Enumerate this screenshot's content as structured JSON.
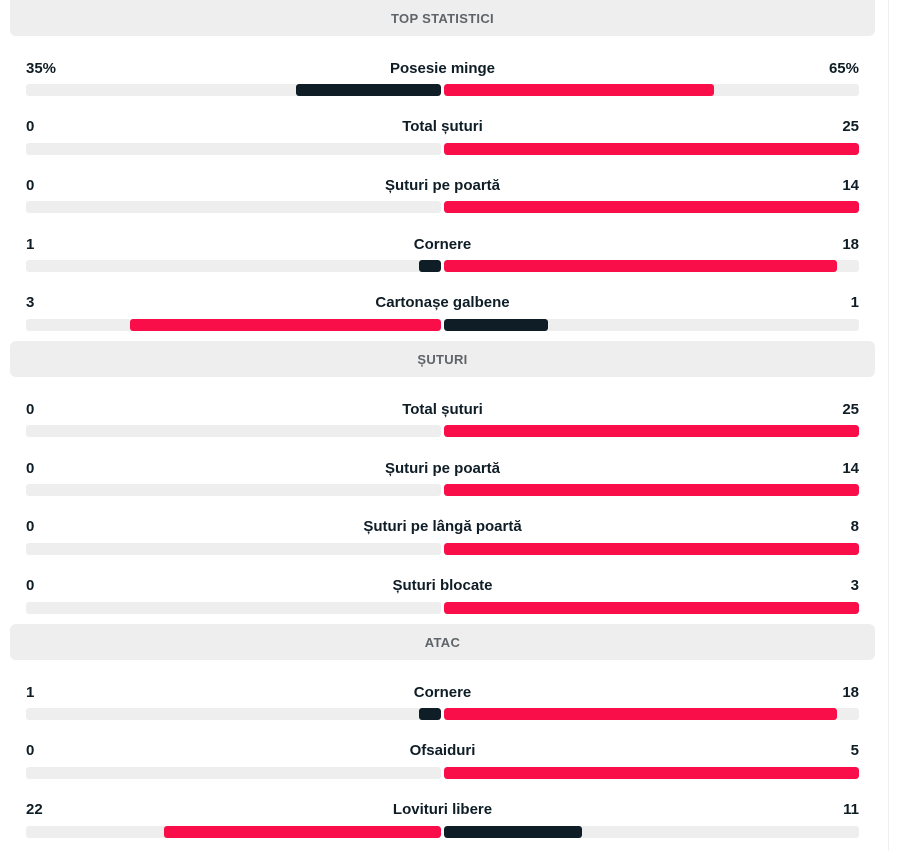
{
  "colors": {
    "leader": "#fa0e4a",
    "trailer": "#0f1d26",
    "track": "#eeeeee"
  },
  "sections": [
    {
      "title": "TOP STATISTICI",
      "stats": [
        {
          "name": "Posesie minge",
          "home_label": "35%",
          "away_label": "65%",
          "home": 35,
          "away": 65,
          "percent": true
        },
        {
          "name": "Total șuturi",
          "home_label": "0",
          "away_label": "25",
          "home": 0,
          "away": 25
        },
        {
          "name": "Șuturi pe poartă",
          "home_label": "0",
          "away_label": "14",
          "home": 0,
          "away": 14
        },
        {
          "name": "Cornere",
          "home_label": "1",
          "away_label": "18",
          "home": 1,
          "away": 18
        },
        {
          "name": "Cartonașe galbene",
          "home_label": "3",
          "away_label": "1",
          "home": 3,
          "away": 1
        }
      ]
    },
    {
      "title": "ȘUTURI",
      "stats": [
        {
          "name": "Total șuturi",
          "home_label": "0",
          "away_label": "25",
          "home": 0,
          "away": 25
        },
        {
          "name": "Șuturi pe poartă",
          "home_label": "0",
          "away_label": "14",
          "home": 0,
          "away": 14
        },
        {
          "name": "Șuturi pe lângă poartă",
          "home_label": "0",
          "away_label": "8",
          "home": 0,
          "away": 8
        },
        {
          "name": "Șuturi blocate",
          "home_label": "0",
          "away_label": "3",
          "home": 0,
          "away": 3
        }
      ]
    },
    {
      "title": "ATAC",
      "stats": [
        {
          "name": "Cornere",
          "home_label": "1",
          "away_label": "18",
          "home": 1,
          "away": 18
        },
        {
          "name": "Ofsaiduri",
          "home_label": "0",
          "away_label": "5",
          "home": 0,
          "away": 5
        },
        {
          "name": "Lovituri libere",
          "home_label": "22",
          "away_label": "11",
          "home": 22,
          "away": 11
        }
      ]
    }
  ]
}
